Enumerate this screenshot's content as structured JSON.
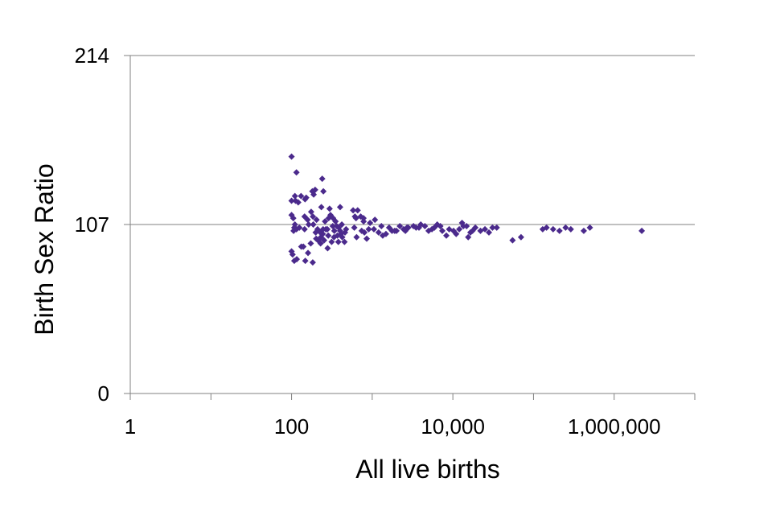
{
  "chart_data": {
    "type": "scatter",
    "title": "",
    "xlabel": "All live births",
    "ylabel": "Birth Sex Ratio",
    "x_scale": "log10",
    "xlim": [
      1,
      10000000
    ],
    "ylim": [
      0,
      214
    ],
    "x_ticks": [
      {
        "value": 1,
        "label": "1"
      },
      {
        "value": 100,
        "label": "100"
      },
      {
        "value": 10000,
        "label": "10,000"
      },
      {
        "value": 1000000,
        "label": "1,000,000"
      }
    ],
    "y_ticks": [
      {
        "value": 0,
        "label": "0"
      },
      {
        "value": 107,
        "label": "107"
      },
      {
        "value": 214,
        "label": "214"
      }
    ],
    "grid": "horizontal",
    "legend": "none",
    "marker": "diamond",
    "point_color": "#4B2A8C",
    "axis_color": "#808080",
    "points": [
      [
        100,
        150
      ],
      [
        115,
        140
      ],
      [
        100,
        122
      ],
      [
        112,
        122
      ],
      [
        110,
        125
      ],
      [
        131,
        125
      ],
      [
        121,
        121
      ],
      [
        100,
        113
      ],
      [
        105,
        111
      ],
      [
        108,
        105
      ],
      [
        110,
        107
      ],
      [
        125,
        105
      ],
      [
        115,
        104
      ],
      [
        106,
        103
      ],
      [
        100,
        90
      ],
      [
        103,
        88
      ],
      [
        108,
        84
      ],
      [
        116,
        85
      ],
      [
        140,
        93
      ],
      [
        132,
        93
      ],
      [
        145,
        112
      ],
      [
        158,
        110
      ],
      [
        147,
        123
      ],
      [
        152,
        124
      ],
      [
        175,
        115
      ],
      [
        184,
        112
      ],
      [
        181,
        128
      ],
      [
        188,
        126
      ],
      [
        196,
        129
      ],
      [
        204,
        110
      ],
      [
        186,
        107
      ],
      [
        163,
        107
      ],
      [
        145,
        104
      ],
      [
        210,
        104
      ],
      [
        173,
        95
      ],
      [
        202,
        98
      ],
      [
        183,
        83
      ],
      [
        160,
        89
      ],
      [
        148,
        84
      ],
      [
        231,
        99
      ],
      [
        199,
        102
      ],
      [
        213,
        97
      ],
      [
        227,
        102
      ],
      [
        246,
        104
      ],
      [
        260,
        109
      ],
      [
        288,
        111
      ],
      [
        304,
        113
      ],
      [
        327,
        111
      ],
      [
        234,
        118
      ],
      [
        248,
        128
      ],
      [
        240,
        136
      ],
      [
        296,
        117
      ],
      [
        266,
        104
      ],
      [
        278,
        104
      ],
      [
        244,
        101
      ],
      [
        285,
        100
      ],
      [
        253,
        97
      ],
      [
        229,
        95
      ],
      [
        314,
        96
      ],
      [
        336,
        99
      ],
      [
        339,
        103
      ],
      [
        324,
        106
      ],
      [
        363,
        106
      ],
      [
        383,
        105
      ],
      [
        351,
        109
      ],
      [
        420,
        107
      ],
      [
        370,
        100
      ],
      [
        425,
        99
      ],
      [
        400,
        103
      ],
      [
        410,
        101
      ],
      [
        460,
        102
      ],
      [
        474,
        104
      ],
      [
        453,
        96
      ],
      [
        380,
        96
      ],
      [
        280,
        92
      ],
      [
        400,
        118
      ],
      [
        580,
        116
      ],
      [
        660,
        116
      ],
      [
        610,
        112
      ],
      [
        630,
        111
      ],
      [
        720,
        112
      ],
      [
        782,
        109
      ],
      [
        780,
        111
      ],
      [
        940,
        108
      ],
      [
        905,
        104
      ],
      [
        800,
        102
      ],
      [
        855,
        98
      ],
      [
        740,
        103
      ],
      [
        600,
        105
      ],
      [
        1080,
        110
      ],
      [
        640,
        99
      ],
      [
        1050,
        104
      ],
      [
        1200,
        102
      ],
      [
        1300,
        106
      ],
      [
        1350,
        100
      ],
      [
        1480,
        101
      ],
      [
        1620,
        105
      ],
      [
        1760,
        103
      ],
      [
        2000,
        103
      ],
      [
        2200,
        106
      ],
      [
        1900,
        103
      ],
      [
        2450,
        104
      ],
      [
        2580,
        103
      ],
      [
        2800,
        105
      ],
      [
        2700,
        105
      ],
      [
        3250,
        106
      ],
      [
        3500,
        105
      ],
      [
        3800,
        105
      ],
      [
        4000,
        107
      ],
      [
        4500,
        106
      ],
      [
        5000,
        103
      ],
      [
        5500,
        104
      ],
      [
        5900,
        105
      ],
      [
        6400,
        107
      ],
      [
        7000,
        106
      ],
      [
        7400,
        103
      ],
      [
        8300,
        100
      ],
      [
        9000,
        104
      ],
      [
        10200,
        103
      ],
      [
        11000,
        101
      ],
      [
        12000,
        104
      ],
      [
        13000,
        108
      ],
      [
        13500,
        106
      ],
      [
        14800,
        106
      ],
      [
        15500,
        99
      ],
      [
        16500,
        102
      ],
      [
        17500,
        103
      ],
      [
        19000,
        105
      ],
      [
        22000,
        103
      ],
      [
        25000,
        104
      ],
      [
        28000,
        102
      ],
      [
        31000,
        105
      ],
      [
        35000,
        105
      ],
      [
        55000,
        97
      ],
      [
        70000,
        99
      ],
      [
        130000,
        104
      ],
      [
        145000,
        105
      ],
      [
        175000,
        104
      ],
      [
        210000,
        103
      ],
      [
        250000,
        105
      ],
      [
        290000,
        104
      ],
      [
        420000,
        103
      ],
      [
        500000,
        105
      ],
      [
        2200000,
        103
      ]
    ]
  }
}
